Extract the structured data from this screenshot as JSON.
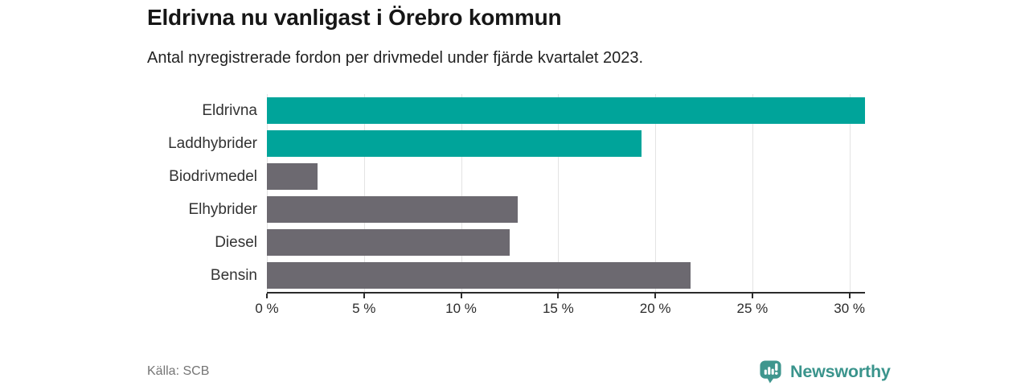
{
  "chart_data": {
    "type": "bar",
    "orientation": "horizontal",
    "title": "Eldrivna nu vanligast i Örebro kommun",
    "subtitle": "Antal nyregistrerade fordon per drivmedel under fjärde kvartalet 2023.",
    "categories": [
      "Eldrivna",
      "Laddhybrider",
      "Biodrivmedel",
      "Elhybrider",
      "Diesel",
      "Bensin"
    ],
    "values": [
      30.8,
      19.3,
      2.6,
      12.9,
      12.5,
      21.8
    ],
    "bar_colors": [
      "#00a49a",
      "#00a49a",
      "#6c6970",
      "#6c6970",
      "#6c6970",
      "#6c6970"
    ],
    "unit": "%",
    "xlim": [
      0,
      30.8
    ],
    "x_ticks": [
      0,
      5,
      10,
      15,
      20,
      25,
      30
    ],
    "x_tick_labels": [
      "0 %",
      "5 %",
      "10 %",
      "15 %",
      "20 %",
      "25 %",
      "30 %"
    ],
    "grid": true,
    "legend": false,
    "ylabel": "",
    "xlabel": ""
  },
  "footer": {
    "source": "Källa: SCB",
    "logo_text": "Newsworthy"
  },
  "colors": {
    "accent_teal": "#00a49a",
    "bar_gray": "#6c6970",
    "logo_teal": "#3a948c",
    "gridline": "#e3e3e3",
    "axis": "#2b2b2b",
    "muted_text": "#757575"
  }
}
